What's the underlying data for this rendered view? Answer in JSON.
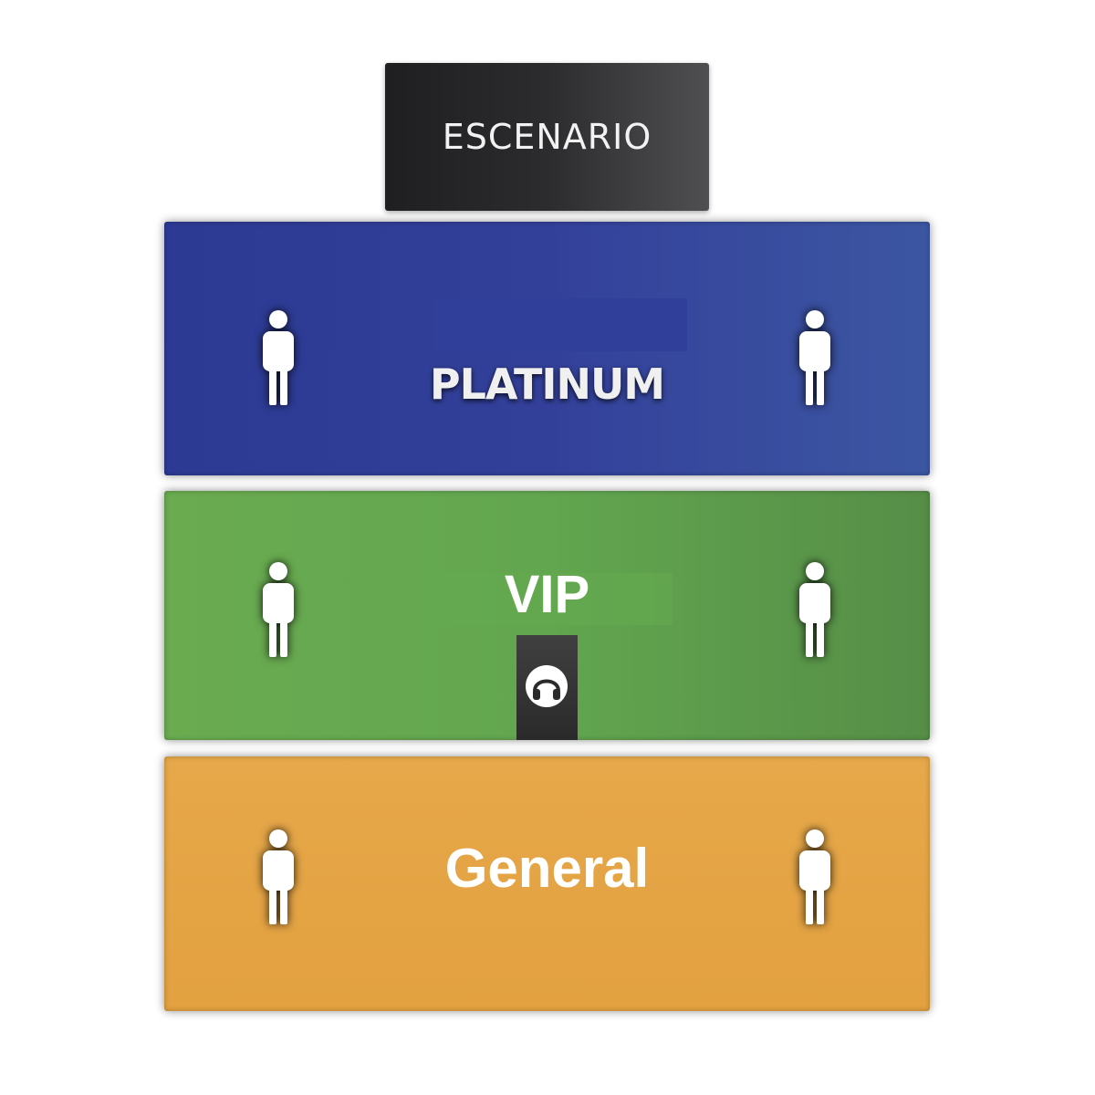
{
  "stage": {
    "label": "ESCENARIO",
    "color": "#2b2a2c"
  },
  "sections": {
    "platinum": {
      "label": "PLATINUM",
      "color": "#33409a"
    },
    "vip": {
      "label": "VIP",
      "color": "#62a64f"
    },
    "general": {
      "label": "General",
      "color": "#e5a743"
    }
  },
  "icons": {
    "person": "person-icon",
    "mixer": "headphones-icon"
  }
}
